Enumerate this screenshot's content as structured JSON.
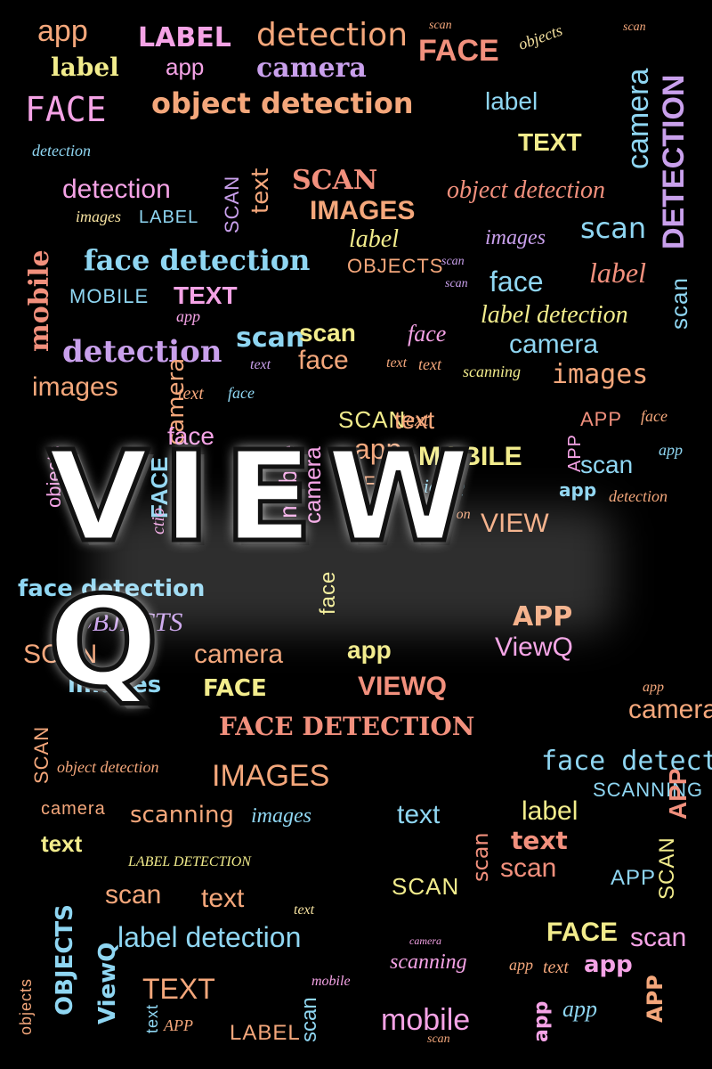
{
  "logo": {
    "text": "VIEW Q"
  },
  "palette": {
    "peach": "#f4a77b",
    "pink": "#f5a3e6",
    "blue": "#8fd6f2",
    "yellow": "#f2ec8c",
    "salmon": "#f2907d",
    "lavender": "#c9a0ec",
    "cream": "#f6e2a0"
  },
  "words": [
    "app",
    "LABEL",
    "detection",
    "scan",
    "app",
    "FACE",
    "objects",
    "MOBILE",
    "scan",
    "label",
    "camera",
    "FACE",
    "object detection",
    "label",
    "camera",
    "DETECTION",
    "OBJECT DETECTION",
    "TEXT",
    "detection",
    "detection",
    "SCAN",
    "text",
    "object detection",
    "LABEL",
    "images",
    "SCAN",
    "IMAGES",
    "scan",
    "mobile",
    "label",
    "images",
    "face detection",
    "OBJECTS",
    "scan",
    "face",
    "label",
    "MOBILE",
    "TEXT",
    "OBJECTS",
    "scan",
    "scan",
    "app",
    "label detection",
    "scan",
    "scan",
    "camera",
    "detection",
    "face",
    "text",
    "text",
    "scanning",
    "images",
    "images",
    "text",
    "face",
    "DETECTION",
    "text",
    "camera",
    "objects",
    "text",
    "face",
    "SCAN",
    "text",
    "FACE",
    "APP",
    "face",
    "face",
    "mobile",
    "camera",
    "app",
    "text",
    "VIEWQ",
    "FACE",
    "viewQ",
    "MOBILE",
    "APP",
    "scan",
    "app",
    "app",
    "detection",
    "detection",
    "FACE",
    "ctio",
    "VIEW",
    "face detection",
    "OBJECTS",
    "mobile",
    "APP",
    "face",
    "SCAN",
    "app",
    "camera",
    "ViewQ",
    "images",
    "FACE",
    "VIEWQ",
    "mobile",
    "app",
    "camera",
    "SCAN",
    "label",
    "FACE DETECTION",
    "text",
    "face detection",
    "object detection",
    "IMAGES",
    "SCANNING",
    "camera",
    "scanning",
    "images",
    "text",
    "label",
    "APP",
    "text",
    "LABEL DETECTION",
    "mobile",
    "text",
    "scan",
    "scan",
    "SCAN",
    "APP",
    "SCAN",
    "scan",
    "text",
    "text",
    "OBJECTS",
    "camera",
    "FACE",
    "scan",
    "label detection",
    "OBJECTS",
    "objects",
    "scanning",
    "app",
    "text",
    "app",
    "APP",
    "app",
    "ViewQ",
    "mobile",
    "TEXT",
    "text",
    "APP",
    "app",
    "LABEL",
    "mobile",
    "scan",
    "scan"
  ]
}
